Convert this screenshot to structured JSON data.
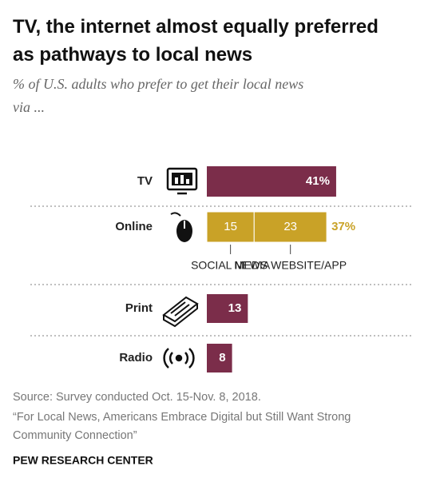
{
  "chart_data": {
    "type": "bar",
    "title": "TV, the internet almost equally preferred as pathways to local news",
    "subtitle": "% of U.S. adults who prefer to get their local news via ...",
    "categories": [
      "TV",
      "Online",
      "Print",
      "Radio"
    ],
    "values": [
      41,
      null,
      13,
      8
    ],
    "value_labels": [
      "41%",
      null,
      "13",
      "8"
    ],
    "color": "#7b2d4a",
    "online_segments": [
      {
        "name": "SOCIAL MEDIA",
        "value": 15,
        "color": "#c9a227"
      },
      {
        "name": "NEWS WEBSITE/APP",
        "value": 23,
        "color": "#c9a227"
      }
    ],
    "online_total": {
      "value": 37,
      "label": "37%"
    },
    "source": "Source: Survey conducted Oct. 15-Nov. 8, 2018.",
    "note": "“For Local News, Americans Embrace Digital but Still Want Strong Community Connection”",
    "footer": "PEW RESEARCH CENTER"
  }
}
